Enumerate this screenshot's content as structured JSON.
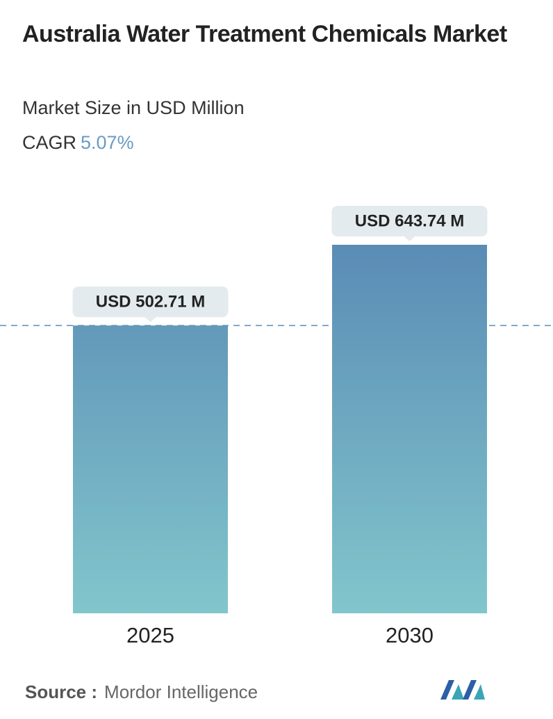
{
  "chart_data": {
    "type": "bar",
    "title": "Australia Water Treatment Chemicals Market",
    "subtitle": "Market Size in USD Million",
    "cagr": {
      "label": "CAGR",
      "value": "5.07%"
    },
    "categories": [
      "2025",
      "2030"
    ],
    "values": [
      502.71,
      643.74
    ],
    "value_labels": [
      "USD 502.71 M",
      "USD 643.74 M"
    ],
    "gradient": [
      "#5a8cb5",
      "#82c6cc"
    ],
    "source_label": "Source :",
    "source": "Mordor Intelligence"
  }
}
